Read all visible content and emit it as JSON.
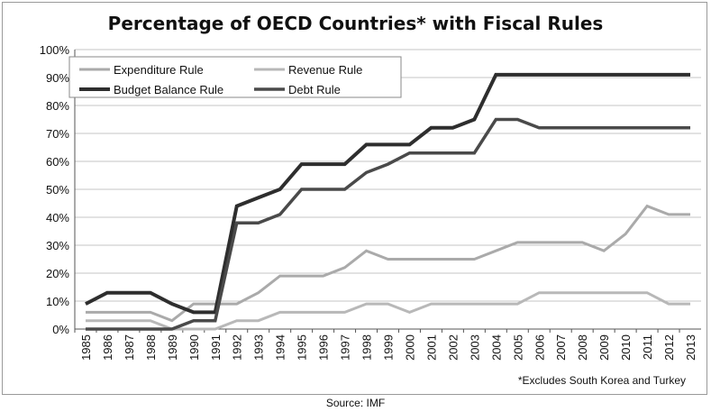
{
  "chart_data": {
    "type": "line",
    "title": "Percentage of OECD Countries* with Fiscal Rules",
    "footnote": "*Excludes South Korea and Turkey",
    "source": "Source: IMF",
    "x": [
      "1985",
      "1986",
      "1987",
      "1988",
      "1989",
      "1990",
      "1991",
      "1992",
      "1993",
      "1994",
      "1995",
      "1996",
      "1997",
      "1998",
      "1999",
      "2000",
      "2001",
      "2002",
      "2003",
      "2004",
      "2005",
      "2006",
      "2007",
      "2008",
      "2009",
      "2010",
      "2011",
      "2012",
      "2013"
    ],
    "ylim": [
      0,
      100
    ],
    "yticks": [
      "0%",
      "10%",
      "20%",
      "30%",
      "40%",
      "50%",
      "60%",
      "70%",
      "80%",
      "90%",
      "100%"
    ],
    "grid": true,
    "legend_placement": "top-left",
    "series": [
      {
        "name": "Expenditure Rule",
        "color": "#aaaaaa",
        "width": 3,
        "values": [
          6,
          6,
          6,
          6,
          3,
          9,
          9,
          9,
          13,
          19,
          19,
          19,
          22,
          28,
          25,
          25,
          25,
          25,
          25,
          28,
          31,
          31,
          31,
          31,
          28,
          34,
          44,
          41,
          41
        ]
      },
      {
        "name": "Revenue Rule",
        "color": "#b8b8b8",
        "width": 3,
        "values": [
          3,
          3,
          3,
          3,
          0,
          0,
          0,
          3,
          3,
          6,
          6,
          6,
          6,
          9,
          9,
          6,
          9,
          9,
          9,
          9,
          9,
          13,
          13,
          13,
          13,
          13,
          13,
          9,
          9
        ]
      },
      {
        "name": "Budget Balance Rule",
        "color": "#2e2e2e",
        "width": 4,
        "values": [
          9,
          13,
          13,
          13,
          9,
          6,
          6,
          44,
          47,
          50,
          59,
          59,
          59,
          66,
          66,
          66,
          72,
          72,
          75,
          91,
          91,
          91,
          91,
          91,
          91,
          91,
          91,
          91,
          91
        ]
      },
      {
        "name": "Debt Rule",
        "color": "#4a4a4a",
        "width": 3.5,
        "values": [
          0,
          0,
          0,
          0,
          0,
          3,
          3,
          38,
          38,
          41,
          50,
          50,
          50,
          56,
          59,
          63,
          63,
          63,
          63,
          75,
          75,
          72,
          72,
          72,
          72,
          72,
          72,
          72,
          72
        ]
      }
    ]
  }
}
